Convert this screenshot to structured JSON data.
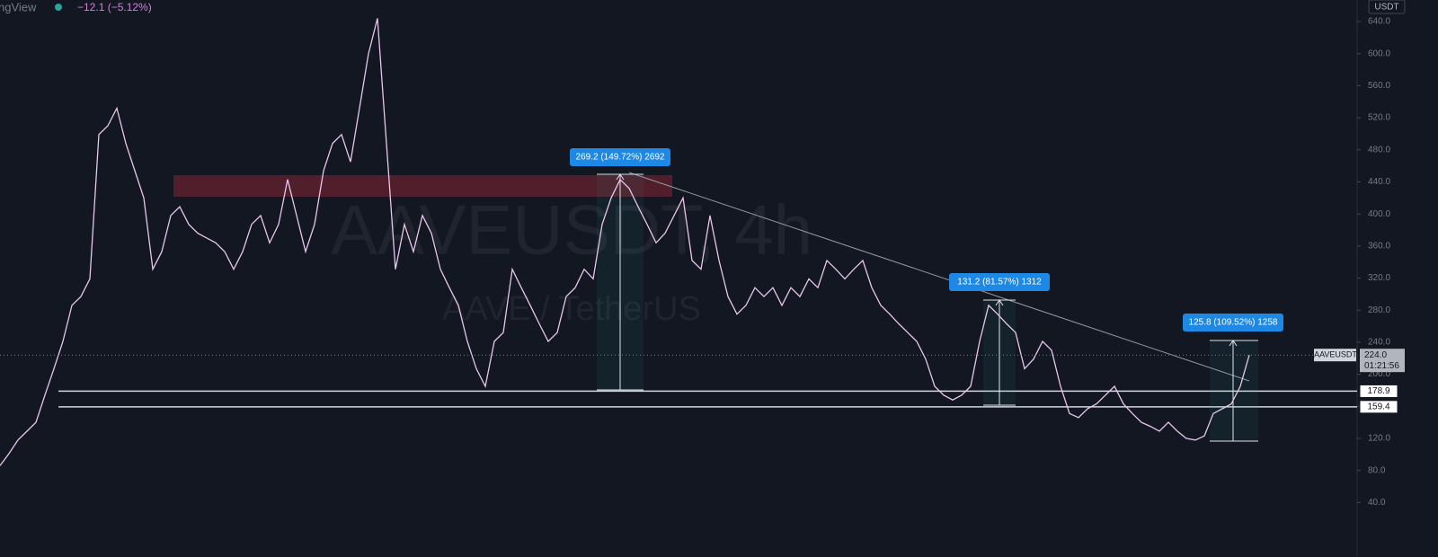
{
  "chart_data": {
    "type": "line",
    "brand": "ngView",
    "change": "−12.1 (−5.12%)",
    "currency": "USDT",
    "watermark": "AAVEUSDT, 4h",
    "watermark_sub": "AAVE / TetherUS",
    "symbol": "AAVEUSDT",
    "countdown": "01:21:56",
    "last_price": {
      "value": 224,
      "label": "224.0"
    },
    "levels": [
      178.9,
      159.4
    ],
    "measurements": [
      "269.2 (149.72%) 2692",
      "131.2 (81.57%) 1312",
      "125.8 (109.52%) 1258"
    ],
    "color": "#e8c6ee",
    "xlim": [
      0,
      151
    ],
    "ylim": [
      -14.5,
      666.9
    ],
    "yticks": [
      {
        "value": 40,
        "label": "40.0"
      },
      {
        "value": 80,
        "label": "80.0"
      },
      {
        "value": 120,
        "label": "120.0"
      },
      {
        "value": 160,
        "label": "160.0"
      },
      {
        "value": 200,
        "label": "200.0"
      },
      {
        "value": 240,
        "label": "240.0"
      },
      {
        "value": 280,
        "label": "280.0"
      },
      {
        "value": 320,
        "label": "320.0"
      },
      {
        "value": 360,
        "label": "360.0"
      },
      {
        "value": 400,
        "label": "400.0"
      },
      {
        "value": 440,
        "label": "440.0"
      },
      {
        "value": 480,
        "label": "480.0"
      },
      {
        "value": 520,
        "label": "520.0"
      },
      {
        "value": 560,
        "label": "560.0"
      },
      {
        "value": 600,
        "label": "600.0"
      },
      {
        "value": 640,
        "label": "640.0"
      }
    ],
    "values": [
      86,
      101,
      118,
      129,
      140,
      174,
      207,
      241,
      286,
      297,
      319,
      499,
      510,
      532,
      488,
      454,
      420,
      331,
      353,
      398,
      409,
      387,
      376,
      370,
      364,
      353,
      331,
      353,
      387,
      398,
      364,
      387,
      443,
      398,
      353,
      387,
      454,
      488,
      499,
      465,
      532,
      600,
      644,
      488,
      331,
      387,
      353,
      398,
      376,
      331,
      308,
      286,
      241,
      207,
      185,
      241,
      252,
      331,
      308,
      286,
      263,
      241,
      252,
      297,
      308,
      331,
      319,
      387,
      420,
      443,
      432,
      409,
      387,
      364,
      376,
      398,
      420,
      342,
      331,
      398,
      342,
      297,
      275,
      286,
      308,
      297,
      308,
      286,
      308,
      297,
      319,
      308,
      342,
      331,
      319,
      331,
      342,
      308,
      286,
      275,
      263,
      252,
      241,
      219,
      185,
      174,
      168,
      174,
      185,
      241,
      286,
      275,
      263,
      252,
      207,
      219,
      241,
      230,
      185,
      151,
      146,
      157,
      163,
      174,
      185,
      163,
      151,
      140,
      135,
      129,
      140,
      129,
      120,
      118,
      123,
      151,
      157,
      163,
      185,
      224
    ]
  }
}
